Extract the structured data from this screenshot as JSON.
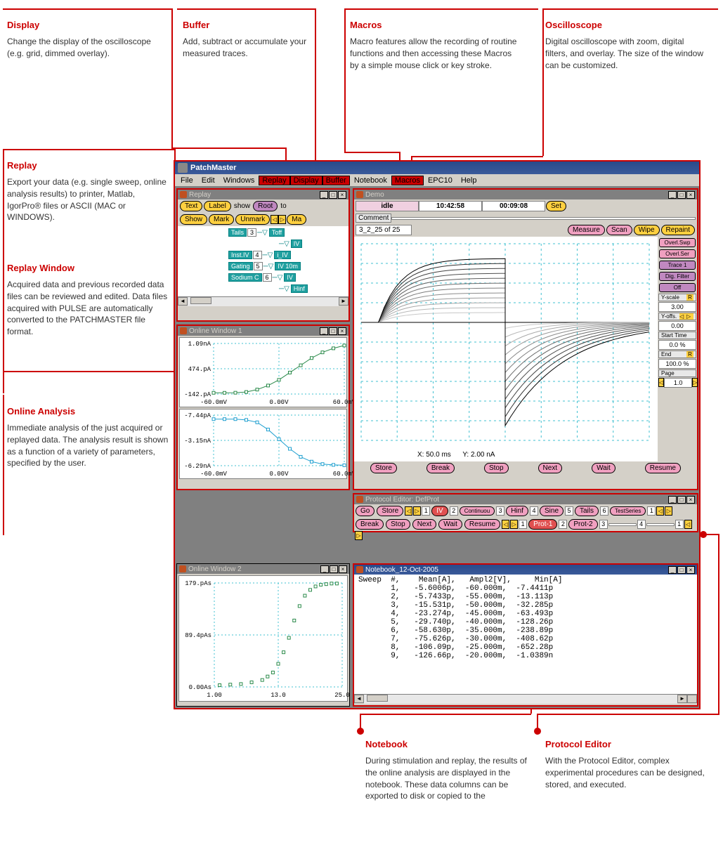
{
  "callouts": {
    "display": {
      "title": "Display",
      "text": "Change the display of the oscilloscope (e.g. grid, dimmed overlay)."
    },
    "buffer": {
      "title": "Buffer",
      "text": "Add, subtract or accumulate your measured traces."
    },
    "macros": {
      "title": "Macros",
      "text": "Macro features allow the recording of routine functions and then accessing these Macros by a simple mouse click or key stroke."
    },
    "oscilloscope": {
      "title": "Oscilloscope",
      "text": "Digital oscilloscope with zoom, digital filters, and overlay. The size of the window can be customized."
    },
    "replay": {
      "title": "Replay",
      "text": "Export your data (e.g. single sweep, online analysis results) to printer, Matlab, IgorPro® files or ASCII (MAC or WINDOWS)."
    },
    "replay_window": {
      "title": "Replay Window",
      "text": "Acquired data and previous recorded data files can be reviewed and edited. Data files acquired with PULSE are automatically converted to the PATCHMASTER file format."
    },
    "online_analysis": {
      "title": "Online Analysis",
      "text": "Immediate analysis of the just acquired or replayed data. The analysis result is shown as a function of a variety of parameters, specified by the user."
    },
    "notebook": {
      "title": "Notebook",
      "text": "During stimulation and replay, the results of the online analysis are displayed in the notebook. These data columns can be exported to disk or copied to the"
    },
    "protocol_editor": {
      "title": "Protocol Editor",
      "text": "With the Protocol Editor, complex experimental procedures can be designed, stored, and executed."
    }
  },
  "app": {
    "title": "PatchMaster"
  },
  "menu": [
    "File",
    "Edit",
    "Windows",
    "Replay",
    "Display",
    "Buffer",
    "Notebook",
    "Macros",
    "EPC10",
    "Help"
  ],
  "menu_hot": [
    3,
    4,
    5,
    7
  ],
  "replay": {
    "title": "Replay",
    "row1": {
      "text": "Text",
      "label": "Label",
      "show": "show",
      "root": "Root",
      "to": "to"
    },
    "row2": {
      "show": "Show",
      "mark": "Mark",
      "unmark": "Unmark",
      "ma": "Ma"
    },
    "tree": [
      {
        "l": "Tails",
        "n": "3",
        "r1": "Toff"
      },
      {
        "l": "",
        "n": "",
        "r1": "IV"
      },
      {
        "l": "Inst.IV",
        "n": "4",
        "r1": "i_IV"
      },
      {
        "l": "Gating",
        "n": "5",
        "r1": "IV 10m"
      },
      {
        "l": "Sodium C",
        "n": "6",
        "r1": "IV"
      },
      {
        "l": "",
        "n": "",
        "r1": "Hinf"
      }
    ]
  },
  "online1": {
    "title": "Online Window 1",
    "plot1": {
      "ylabels": [
        "1.09nA",
        "474.pA",
        "-142.pA"
      ],
      "xlabels": [
        "-60.0mV",
        "0.00V",
        "60.0mV"
      ],
      "color": "#2a8a4a",
      "points": [
        [
          -60,
          -120
        ],
        [
          -50,
          -120
        ],
        [
          -40,
          -118
        ],
        [
          -30,
          -100
        ],
        [
          -20,
          -40
        ],
        [
          -10,
          60
        ],
        [
          0,
          200
        ],
        [
          10,
          380
        ],
        [
          20,
          560
        ],
        [
          30,
          740
        ],
        [
          40,
          880
        ],
        [
          50,
          980
        ],
        [
          60,
          1050
        ]
      ]
    },
    "plot2": {
      "ylabels": [
        "-7.44pA",
        "-3.15nA",
        "-6.29nA"
      ],
      "xlabels": [
        "-60.0mV",
        "0.00V",
        "60.0mV"
      ],
      "color": "#20a0d0",
      "points": [
        [
          -60,
          -0.5
        ],
        [
          -50,
          -0.5
        ],
        [
          -40,
          -0.5
        ],
        [
          -30,
          -0.6
        ],
        [
          -20,
          -0.9
        ],
        [
          -10,
          -1.8
        ],
        [
          0,
          -3.0
        ],
        [
          10,
          -4.2
        ],
        [
          20,
          -5.2
        ],
        [
          30,
          -5.8
        ],
        [
          40,
          -6.1
        ],
        [
          50,
          -6.2
        ],
        [
          60,
          -6.25
        ]
      ]
    }
  },
  "online2": {
    "title": "Online Window 2",
    "ylabels": [
      "179.pAs",
      "89.4pAs",
      "0.00As"
    ],
    "xlabels": [
      "1.00",
      "13.0",
      "25.0"
    ],
    "color": "#2a8a4a",
    "points": [
      [
        2,
        3
      ],
      [
        4,
        4
      ],
      [
        6,
        5
      ],
      [
        8,
        8
      ],
      [
        10,
        12
      ],
      [
        11,
        18
      ],
      [
        12,
        25
      ],
      [
        13,
        40
      ],
      [
        14,
        60
      ],
      [
        15,
        85
      ],
      [
        16,
        115
      ],
      [
        17,
        140
      ],
      [
        18,
        158
      ],
      [
        19,
        168
      ],
      [
        20,
        174
      ],
      [
        21,
        177
      ],
      [
        22,
        178
      ],
      [
        23,
        179
      ],
      [
        24,
        179
      ]
    ]
  },
  "demo": {
    "title": "Demo",
    "status": "idle",
    "time1": "10:42:58",
    "time2": "00:09:08",
    "set": "Set",
    "comment": "Comment",
    "counter": "3_2_25 of 25",
    "buttons": {
      "measure": "Measure",
      "scan": "Scan",
      "wipe": "Wipe",
      "repaint": "Repaint"
    },
    "side": {
      "ovl_swp": "Overl.Swp",
      "ovl_ser": "Overl.Ser",
      "trace1": "Trace 1",
      "dig": "Dig. Filter",
      "off": "Off",
      "yscale": "Y-scale",
      "yscale_v": "3.00",
      "yoffs": "Y-offs.",
      "yoffs_v": "0.00",
      "start": "Start Time",
      "start_v": "0.0 %",
      "end": "End",
      "end_v": "100.0 %",
      "page": "Page",
      "page_v": "1.0"
    },
    "cursor": {
      "x": "X: 50.0 ms",
      "y": "Y: 2.00 nA"
    },
    "bottom": {
      "store": "Store",
      "break": "Break",
      "stop": "Stop",
      "next": "Next",
      "wait": "Wait",
      "resume": "Resume"
    },
    "grid": {
      "xmin": 0,
      "xmax": 200,
      "ymin": -6,
      "ymax": 4,
      "xstep": 25,
      "ystep": 1
    }
  },
  "protocol": {
    "title": "Protocol Editor:  DefProt",
    "row1": {
      "go": "Go",
      "store": "Store",
      "n1": "1",
      "iv": "IV",
      "n2": "2",
      "cont": "Continuou",
      "n3": "3",
      "hinf": "Hinf",
      "n4": "4",
      "sine": "Sine",
      "n5": "5",
      "tails": "Tails",
      "n6": "6",
      "tst": "TestSeries",
      "end": "1"
    },
    "row2": {
      "break": "Break",
      "stop": "Stop",
      "next": "Next",
      "wait": "Wait",
      "resume": "Resume",
      "n1": "1",
      "prot1": "Prot-1",
      "n2": "2",
      "prot2": "Prot-2",
      "n3": "3",
      "n4": "4",
      "end": "1"
    }
  },
  "notebook": {
    "title": "Notebook_12-Oct-2005",
    "header": "Sweep  #,    Mean[A],   Ampl2[V],     Min[A]",
    "rows": [
      "       1,   -5.6006p,  -60.000m,  -7.4411p",
      "       2,   -5.7433p,  -55.000m,  -13.113p",
      "       3,   -15.531p,  -50.000m,  -32.285p",
      "       4,   -23.274p,  -45.000m,  -63.493p",
      "       5,   -29.740p,  -40.000m,  -128.26p",
      "       6,   -58.630p,  -35.000m,  -238.89p",
      "       7,   -75.626p,  -30.000m,  -408.62p",
      "       8,   -106.09p,  -25.000m,  -652.28p",
      "       9,   -126.66p,  -20.000m,  -1.0389n"
    ]
  },
  "colors": {
    "accent": "#cc0000",
    "teal": "#20a0a0",
    "grid": "#40c0d0"
  }
}
